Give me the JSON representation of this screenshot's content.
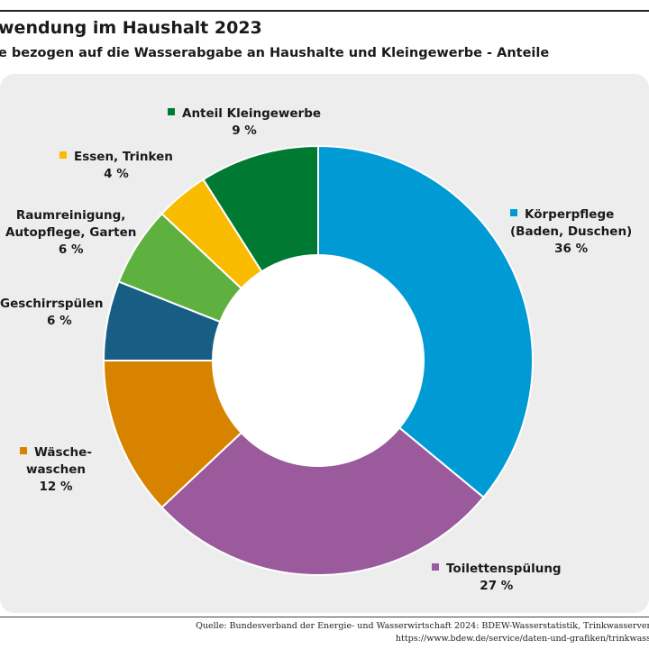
{
  "header": {
    "title": "wendung im Haushalt 2023",
    "subtitle": "e bezogen auf die Wasserabgabe an Haushalte und Kleingewerbe - Anteile"
  },
  "chart_data": {
    "type": "pie",
    "donut": true,
    "start_angle_deg": 0,
    "direction": "clockwise",
    "slices": [
      {
        "label": "Körperpflege (Baden, Duschen)",
        "label_lines": [
          "Körperpflege",
          "(Baden, Duschen)"
        ],
        "value": 36,
        "value_label": "36 %",
        "color": "#009ad4"
      },
      {
        "label": "Toilettenspülung",
        "label_lines": [
          "Toilettenspülung"
        ],
        "value": 27,
        "value_label": "27 %",
        "color": "#9b5a9c"
      },
      {
        "label": "Wäsche-waschen",
        "label_lines": [
          "Wäsche-",
          "waschen"
        ],
        "value": 12,
        "value_label": "12 %",
        "color": "#d78300"
      },
      {
        "label": "Geschirrspülen",
        "label_lines": [
          "Geschirrspülen"
        ],
        "value": 6,
        "value_label": "6 %",
        "color": "#175d84"
      },
      {
        "label": "Raumreinigung, Autopflege, Garten",
        "label_lines": [
          "Raumreinigung,",
          "Autopflege, Garten"
        ],
        "value": 6,
        "value_label": "6 %",
        "color": "#5fb13f"
      },
      {
        "label": "Essen, Trinken",
        "label_lines": [
          "Essen, Trinken"
        ],
        "value": 4,
        "value_label": "4 %",
        "color": "#f8bb00"
      },
      {
        "label": "Anteil Kleingewerbe",
        "label_lines": [
          "Anteil Kleingewerbe"
        ],
        "value": 9,
        "value_label": "9 %",
        "color": "#007a33"
      }
    ]
  },
  "footer": {
    "source_line1": "Quelle: Bundesverband der Energie- und Wasserwirtschaft 2024: BDEW-Wasserstatistik, Trinkwasserver",
    "source_line2": "https://www.bdew.de/service/daten-und-grafiken/trinkwass"
  }
}
